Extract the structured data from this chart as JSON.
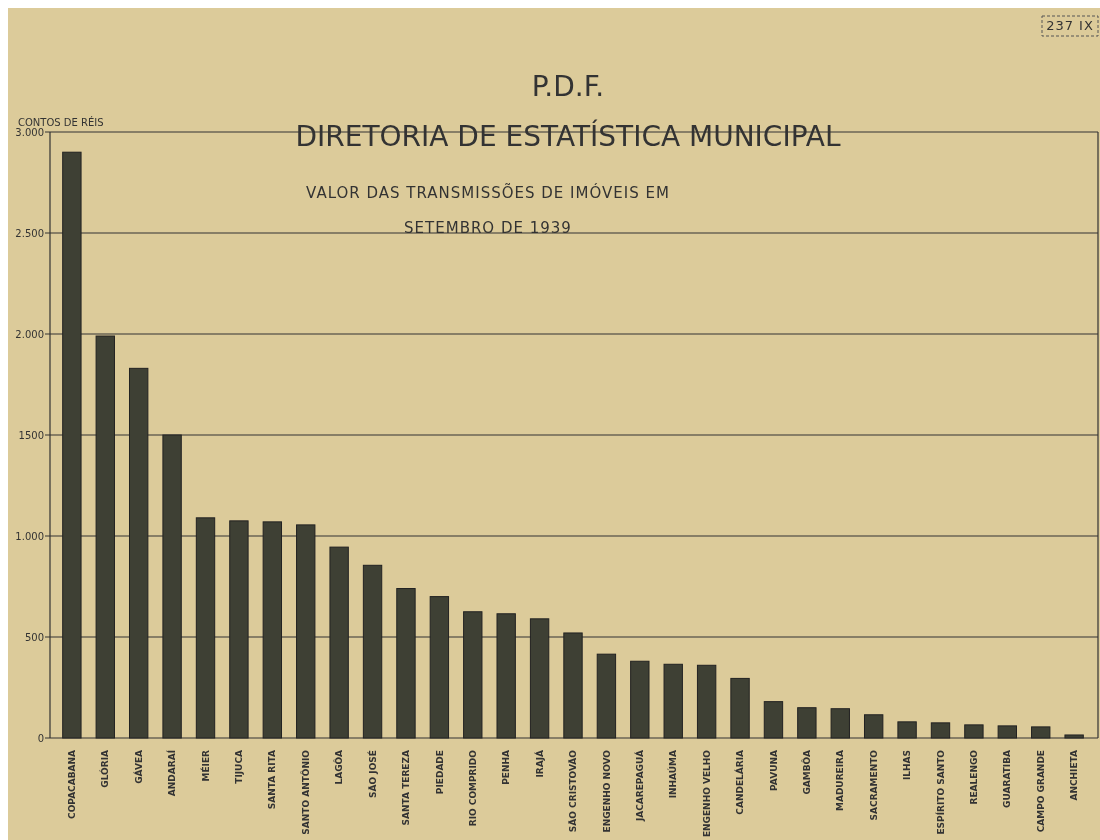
{
  "chart_data": {
    "type": "bar",
    "title": "P.D.F.",
    "subtitle": "DIRETORIA DE ESTATÍSTICA MUNICIPAL",
    "ylabel": "CONTOS DE RÉIS",
    "annotations": [
      "VALOR DAS TRANSMISSÕES DE IMÓVEIS EM",
      "SETEMBRO DE 1939",
      "237 IX"
    ],
    "categories": [
      "COPACABANA",
      "GLÓRIA",
      "GÁVEA",
      "ANDARAÍ",
      "MÉIER",
      "TIJUCA",
      "SANTA RITA",
      "SANTO ANTÔNIO",
      "LAGÔA",
      "SÃO JOSÉ",
      "SANTA TEREZA",
      "PIEDADE",
      "RIO COMPRIDO",
      "PENHA",
      "IRAJÁ",
      "SÃO CRISTOVÃO",
      "ENGENHO NOVO",
      "JACAREPAGUÁ",
      "INHAÚMA",
      "ENGENHO VELHO",
      "CANDELÁRIA",
      "PAVUNA",
      "GAMBÔA",
      "MADUREIRA",
      "SACRAMENTO",
      "ILHAS",
      "ESPÍRITO SANTO",
      "REALENGO",
      "GUARATIBA",
      "CAMPO GRANDE",
      "ANCHIETA"
    ],
    "values": [
      2900,
      1990,
      1830,
      1500,
      1090,
      1075,
      1070,
      1055,
      945,
      855,
      740,
      700,
      625,
      615,
      590,
      520,
      415,
      380,
      365,
      360,
      295,
      180,
      150,
      145,
      115,
      80,
      75,
      65,
      60,
      55,
      15
    ],
    "color": "#3e4034",
    "ylim": [
      0,
      3000
    ],
    "yticks": [
      0,
      500,
      {
        "value": 1000,
        "label": "1.000"
      },
      1500,
      {
        "value": 2000,
        "label": "2.000"
      },
      {
        "value": 2500,
        "label": "2.500"
      },
      {
        "value": 3000,
        "label": "3.000"
      }
    ],
    "grid": "y"
  }
}
